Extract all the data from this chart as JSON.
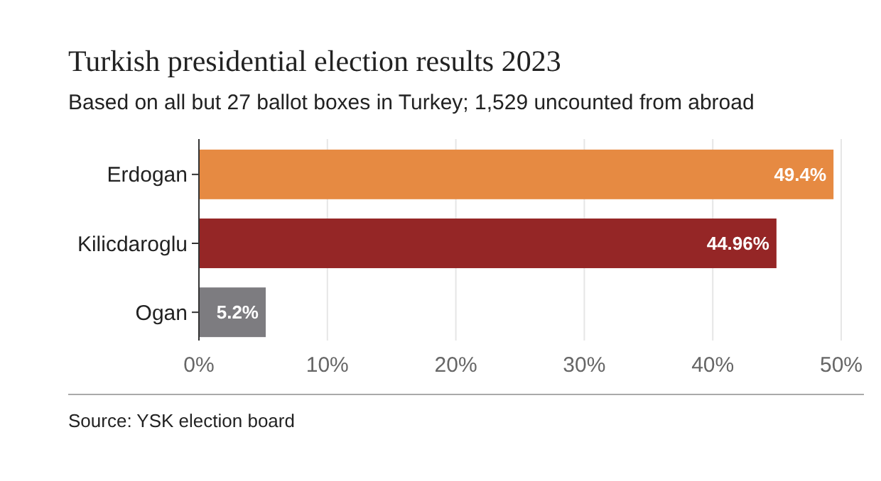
{
  "chart_data": {
    "type": "bar",
    "orientation": "horizontal",
    "title": "Turkish presidential election results 2023",
    "subtitle": "Based on all but 27 ballot boxes in Turkey; 1,529 uncounted from abroad",
    "categories": [
      "Erdogan",
      "Kilicdaroglu",
      "Ogan"
    ],
    "values": [
      49.4,
      44.96,
      5.2
    ],
    "colors": [
      "#e68a42",
      "#952626",
      "#7d7c80"
    ],
    "value_labels": [
      "49.4%",
      "44.96%",
      "5.2%"
    ],
    "xlim": [
      0,
      50
    ],
    "xticks": [
      {
        "value": 0,
        "label": "0%"
      },
      {
        "value": 10,
        "label": "10%"
      },
      {
        "value": 20,
        "label": "20%"
      },
      {
        "value": 30,
        "label": "30%"
      },
      {
        "value": 40,
        "label": "40%"
      },
      {
        "value": 50,
        "label": "50%"
      }
    ],
    "grid": "x",
    "annotations": [
      "Source: YSK election board"
    ]
  }
}
